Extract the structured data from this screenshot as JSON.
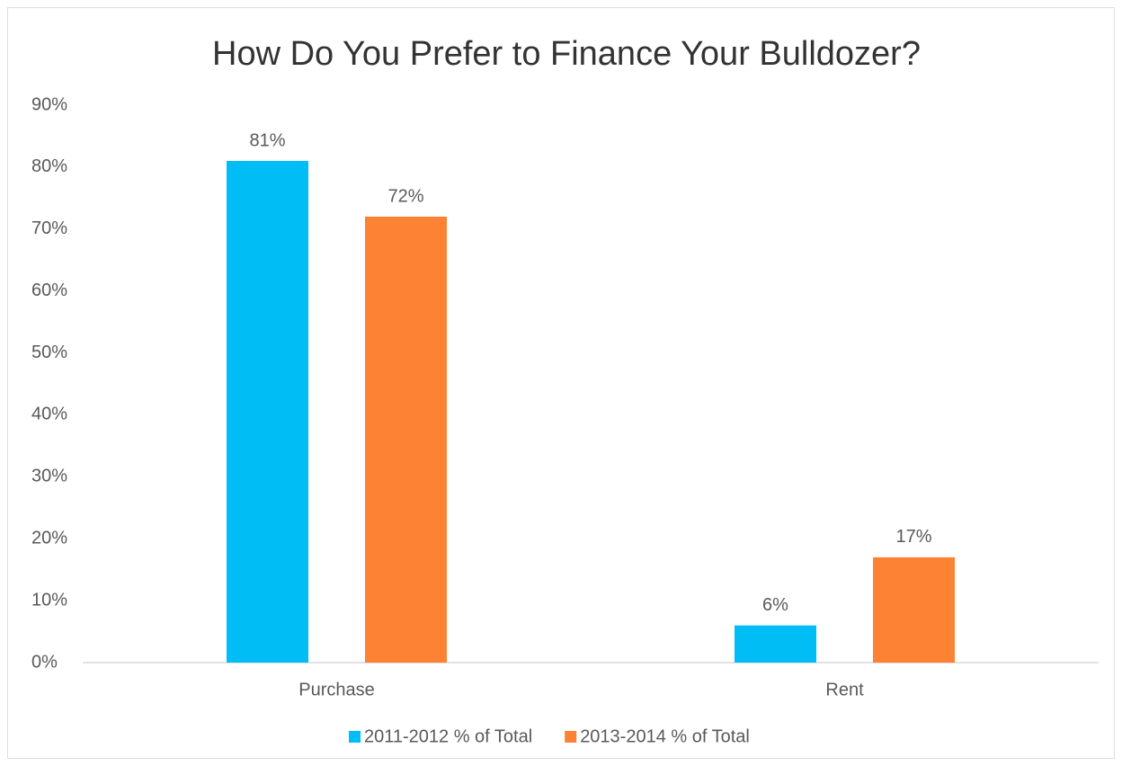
{
  "chart_data": {
    "type": "bar",
    "title": "How Do You Prefer to Finance Your Bulldozer?",
    "categories": [
      "Purchase",
      "Rent"
    ],
    "series": [
      {
        "name": "2011-2012 % of Total",
        "color": "#00bdf6",
        "values": [
          81,
          6
        ],
        "value_labels": [
          "81%",
          "6%"
        ]
      },
      {
        "name": "2013-2014 % of Total",
        "color": "#fd8233",
        "values": [
          72,
          17
        ],
        "value_labels": [
          "72%",
          "17%"
        ]
      }
    ],
    "ylim": [
      0,
      90
    ],
    "yticks": [
      {
        "value": 0,
        "label": "0%"
      },
      {
        "value": 10,
        "label": "10%"
      },
      {
        "value": 20,
        "label": "20%"
      },
      {
        "value": 30,
        "label": "30%"
      },
      {
        "value": 40,
        "label": "40%"
      },
      {
        "value": 50,
        "label": "50%"
      },
      {
        "value": 60,
        "label": "60%"
      },
      {
        "value": 70,
        "label": "70%"
      },
      {
        "value": 80,
        "label": "80%"
      },
      {
        "value": 90,
        "label": "90%"
      }
    ],
    "grid": false,
    "legend": "bottom"
  }
}
